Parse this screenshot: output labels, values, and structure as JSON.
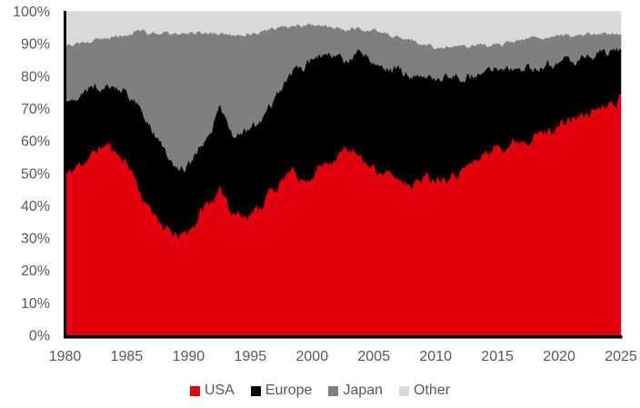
{
  "style": {
    "background": "#ffffff",
    "axis_line_color": "#000000",
    "tick_label_color": "#595959",
    "legend_text_color": "#595959"
  },
  "chart_data": {
    "type": "area",
    "stacked": true,
    "stacking": "percent",
    "title": "",
    "xlabel": "",
    "ylabel": "",
    "grid": false,
    "legend_position": "bottom",
    "x_axis": {
      "range": [
        1980,
        2025
      ],
      "ticks": [
        1980,
        1985,
        1990,
        1995,
        2000,
        2005,
        2010,
        2015,
        2020,
        2025
      ]
    },
    "y_axis": {
      "range": [
        0,
        100
      ],
      "tick_labels": [
        "0%",
        "10%",
        "20%",
        "30%",
        "40%",
        "50%",
        "60%",
        "70%",
        "80%",
        "90%",
        "100%"
      ]
    },
    "x": [
      1980,
      1980.5,
      1981,
      1982,
      1983,
      1983.5,
      1984,
      1985,
      1985.5,
      1986,
      1986.5,
      1987,
      1987.5,
      1988,
      1988.5,
      1989,
      1989.5,
      1990,
      1990.5,
      1991,
      1991.5,
      1992,
      1992.5,
      1993,
      1993.5,
      1994,
      1994.5,
      1995,
      1995.5,
      1996,
      1996.5,
      1997,
      1997.5,
      1998,
      1998.5,
      1999,
      1999.5,
      2000,
      2000.5,
      2001,
      2001.5,
      2002,
      2002.5,
      2003,
      2003.5,
      2004,
      2005,
      2006,
      2007,
      2008,
      2009,
      2010,
      2011,
      2012,
      2013,
      2014,
      2015,
      2016,
      2017,
      2018,
      2019,
      2020,
      2021,
      2022,
      2023,
      2024,
      2025
    ],
    "series": [
      {
        "name": "USA",
        "color": "#e2000f",
        "values": [
          49.5,
          50,
          52,
          55,
          58,
          58.5,
          57,
          53,
          50,
          45,
          40,
          38,
          37,
          33,
          31.5,
          30,
          30.5,
          32,
          34,
          38,
          40.5,
          42,
          43.5,
          43,
          38,
          37.5,
          36.5,
          38,
          38.5,
          40.5,
          44,
          45,
          46.5,
          49.5,
          50,
          49,
          47,
          49.5,
          51.5,
          52.5,
          54,
          55.5,
          56.5,
          57.5,
          55.5,
          53.5,
          51.5,
          49.5,
          48,
          47,
          48.5,
          48.7,
          49.5,
          50.5,
          53,
          56,
          58,
          59,
          60.5,
          61.5,
          62.7,
          64.5,
          66.5,
          67.5,
          70,
          72,
          73.5
        ]
      },
      {
        "name": "Europe",
        "color": "#000000",
        "values": [
          23.5,
          22,
          22,
          20.5,
          19,
          19,
          19.5,
          21.5,
          23,
          25.5,
          26.5,
          25.5,
          24,
          24,
          23.5,
          22,
          21,
          20.5,
          21,
          20.5,
          20,
          22,
          26.5,
          23,
          24.5,
          24.5,
          26,
          25.5,
          26,
          26,
          26,
          27.5,
          29.5,
          30.5,
          32,
          33.5,
          36,
          35,
          34,
          34,
          32,
          30,
          28.5,
          28.5,
          31,
          33,
          33,
          33.5,
          33.5,
          33.5,
          31.5,
          30.3,
          29.8,
          29.1,
          27.5,
          25.3,
          23.8,
          22.5,
          21.8,
          21.4,
          20.5,
          19.5,
          18.5,
          18.5,
          16.8,
          15.5,
          14.7
        ]
      },
      {
        "name": "Japan",
        "color": "#7f7f7f",
        "values": [
          16.5,
          17.5,
          16,
          15,
          14.5,
          14,
          15.5,
          18,
          20,
          23,
          27,
          29.5,
          32,
          36,
          38,
          41,
          41.5,
          40.5,
          38,
          34.7,
          32.7,
          29,
          22.8,
          26.6,
          30.1,
          30.5,
          30,
          29.5,
          28.8,
          27.3,
          24.2,
          22.1,
          19,
          15.2,
          13.4,
          12.9,
          12.5,
          11,
          9.9,
          8.7,
          9,
          9.3,
          9.6,
          8.6,
          8.1,
          8,
          9.5,
          10,
          10.3,
          10.5,
          9.5,
          9.5,
          9,
          9.2,
          9,
          8.2,
          7.7,
          8.5,
          8.7,
          8.6,
          8.6,
          8,
          7.3,
          6.5,
          5.8,
          5.3,
          4.8
        ]
      },
      {
        "name": "Other",
        "color": "#d9d9d9",
        "values": [
          10.5,
          10.5,
          10,
          9.5,
          8.5,
          8.5,
          8,
          7.5,
          7,
          6.5,
          6.5,
          7,
          7,
          7,
          7,
          7,
          7,
          7,
          7,
          6.8,
          6.8,
          7,
          7.2,
          7.4,
          7.4,
          7.5,
          7.5,
          7,
          6.7,
          6.2,
          5.8,
          5.4,
          5,
          4.8,
          4.6,
          4.6,
          4.5,
          4.5,
          4.6,
          4.8,
          5,
          5.2,
          5.4,
          5.4,
          5.4,
          5.5,
          6,
          7,
          8.2,
          9,
          10.5,
          11.5,
          11.7,
          11.2,
          10.5,
          10.5,
          10.5,
          10,
          9,
          8.5,
          8.2,
          8,
          7.7,
          7.5,
          7.4,
          7.2,
          7
        ]
      }
    ]
  }
}
